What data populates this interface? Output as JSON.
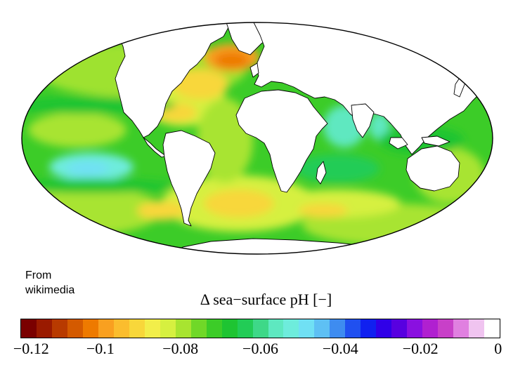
{
  "credit": {
    "line1": "From",
    "line2": "wikimedia"
  },
  "colorbar": {
    "title": "Δ sea−surface pH [−]",
    "tick_labels": [
      "−0.12",
      "−0.1",
      "−0.08",
      "−0.06",
      "−0.04",
      "−0.02",
      "0"
    ],
    "tick_values": [
      -0.12,
      -0.1,
      -0.08,
      -0.06,
      -0.04,
      -0.02,
      0
    ],
    "range": [
      -0.12,
      0
    ],
    "colors": [
      "#7a0000",
      "#9a1a00",
      "#b83a00",
      "#d45a00",
      "#ee7a00",
      "#f9a020",
      "#fbbd2e",
      "#f8d73a",
      "#f2ee4a",
      "#d6f040",
      "#a8e430",
      "#70d828",
      "#3ccc28",
      "#1ec432",
      "#22cc56",
      "#3ed888",
      "#5ee8c0",
      "#6eecdc",
      "#70e0f4",
      "#5ec0f4",
      "#3e8cf0",
      "#2050f0",
      "#1020f0",
      "#3000e8",
      "#5800e0",
      "#8a10e0",
      "#b020d0",
      "#c840c8",
      "#e080e0",
      "#f0c4f0",
      "#ffffff"
    ]
  },
  "map": {
    "ocean_base_color": "#3ccc28",
    "land_color": "#ffffff",
    "outline_color": "#000000",
    "highlights": [
      {
        "region": "North Atlantic",
        "delta_ph": -0.11,
        "color": "#ee7a00"
      },
      {
        "region": "Western Atlantic",
        "delta_ph": -0.09,
        "color": "#f8d73a"
      },
      {
        "region": "South Pacific",
        "delta_ph": -0.045,
        "color": "#70e0f4"
      },
      {
        "region": "Arabian Sea",
        "delta_ph": -0.05,
        "color": "#5ee8c0"
      },
      {
        "region": "Southern Ocean",
        "delta_ph": -0.09,
        "color": "#f8d73a"
      }
    ]
  }
}
